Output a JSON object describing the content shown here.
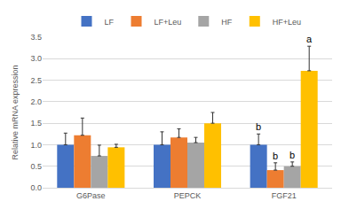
{
  "chart_data": {
    "type": "bar",
    "y_label": "Relative mRNA expression",
    "categories": [
      "G6Pase",
      "PEPCK",
      "FGF21"
    ],
    "series": [
      {
        "name": "LF",
        "color": "#4472c4",
        "values": [
          1.0,
          1.0,
          1.0
        ],
        "errors": [
          0.27,
          0.3,
          0.25
        ]
      },
      {
        "name": "LF+Leu",
        "color": "#ed7d31",
        "values": [
          1.22,
          1.17,
          0.41
        ],
        "errors": [
          0.4,
          0.2,
          0.17
        ]
      },
      {
        "name": "HF",
        "color": "#a5a5a5",
        "values": [
          0.74,
          1.05,
          0.5
        ],
        "errors": [
          0.25,
          0.12,
          0.1
        ]
      },
      {
        "name": "HF+Leu",
        "color": "#ffc000",
        "values": [
          0.94,
          1.5,
          2.72
        ],
        "errors": [
          0.07,
          0.25,
          0.57
        ]
      }
    ],
    "ylim": [
      0,
      3.5
    ],
    "yticks": [
      {
        "value": 0,
        "label": "0.0"
      },
      {
        "value": 0.5,
        "label": "0.5"
      },
      {
        "value": 1,
        "label": "1.0"
      },
      {
        "value": 1.5,
        "label": "1.5"
      },
      {
        "value": 2,
        "label": "2.0"
      },
      {
        "value": 2.5,
        "label": "2.5"
      },
      {
        "value": 3,
        "label": "3.0"
      },
      {
        "value": 3.5,
        "label": "3.5"
      }
    ],
    "grid": true,
    "legend": "top",
    "annotations": [
      {
        "category": "FGF21",
        "series": "LF",
        "text": "b"
      },
      {
        "category": "FGF21",
        "series": "LF+Leu",
        "text": "b"
      },
      {
        "category": "FGF21",
        "series": "HF",
        "text": "b"
      },
      {
        "category": "FGF21",
        "series": "HF+Leu",
        "text": "a"
      }
    ]
  }
}
